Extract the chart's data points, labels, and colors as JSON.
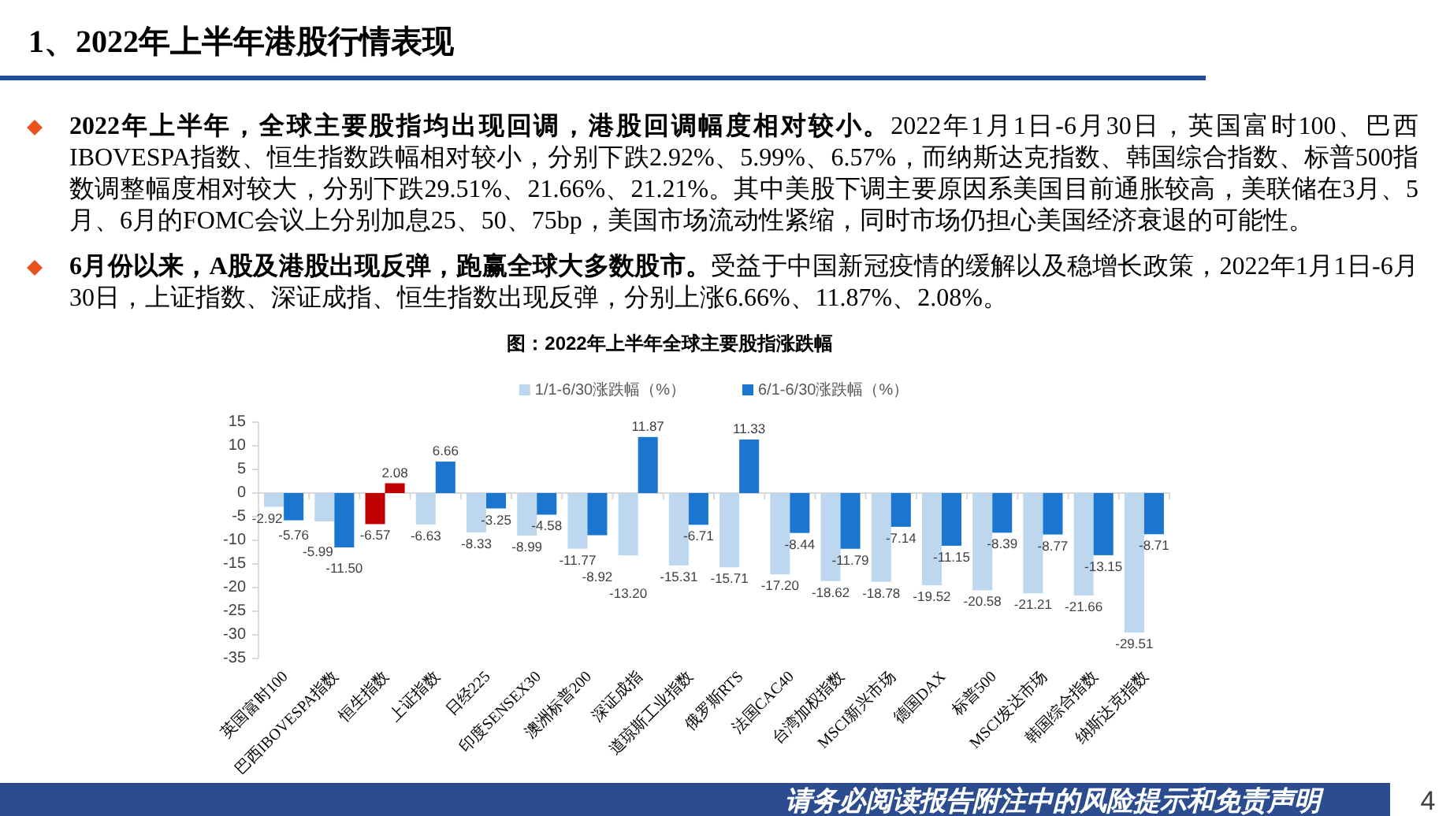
{
  "chart_data": {
    "type": "bar",
    "title": "图：2022年上半年全球主要股指涨跌幅",
    "categories": [
      "英国富时100",
      "巴西IBOVESPA指数",
      "恒生指数",
      "上证指数",
      "日经225",
      "印度SENSEX30",
      "澳洲标普200",
      "深证成指",
      "道琼斯工业指数",
      "俄罗斯RTS",
      "法国CAC40",
      "台湾加权指数",
      "MSCI新兴市场",
      "德国DAX",
      "标普500",
      "MSCI发达市场",
      "韩国综合指数",
      "纳斯达克指数"
    ],
    "series": [
      {
        "name": "1/1-6/30涨跌幅（%）",
        "color": "#bdd7ee",
        "colors": [
          "#bdd7ee",
          "#bdd7ee",
          "#c00000",
          "#bdd7ee",
          "#bdd7ee",
          "#bdd7ee",
          "#bdd7ee",
          "#bdd7ee",
          "#bdd7ee",
          "#bdd7ee",
          "#bdd7ee",
          "#bdd7ee",
          "#bdd7ee",
          "#bdd7ee",
          "#bdd7ee",
          "#bdd7ee",
          "#bdd7ee",
          "#bdd7ee"
        ],
        "values": [
          -2.92,
          -5.99,
          -6.57,
          -6.63,
          -8.33,
          -8.99,
          -11.77,
          -13.2,
          -15.31,
          -15.71,
          -17.2,
          -18.62,
          -18.78,
          -19.52,
          -20.58,
          -21.21,
          -21.66,
          -29.51
        ],
        "value_labels": [
          "-2.92",
          "-5.99",
          "-6.57",
          "-6.63",
          "-8.33",
          "-8.99",
          "-11.77",
          "-13.20",
          "-15.31",
          "-15.71",
          "-17.20",
          "-18.62",
          "-18.78",
          "-19.52",
          "-20.58",
          "-21.21",
          "-21.66",
          "-29.51"
        ]
      },
      {
        "name": "6/1-6/30涨跌幅（%）",
        "color": "#1b76d1",
        "colors": [
          "#1b76d1",
          "#1b76d1",
          "#c00000",
          "#1b76d1",
          "#1b76d1",
          "#1b76d1",
          "#1b76d1",
          "#1b76d1",
          "#1b76d1",
          "#1b76d1",
          "#1b76d1",
          "#1b76d1",
          "#1b76d1",
          "#1b76d1",
          "#1b76d1",
          "#1b76d1",
          "#1b76d1",
          "#1b76d1"
        ],
        "values": [
          -5.76,
          -11.5,
          2.08,
          6.66,
          -3.25,
          -4.58,
          -8.92,
          11.87,
          -6.71,
          11.33,
          -8.44,
          -11.79,
          -7.14,
          -11.15,
          -8.39,
          -8.77,
          -13.15,
          -8.71
        ],
        "value_labels": [
          "-5.76",
          "-11.50",
          "2.08",
          "6.66",
          "-3.25",
          "-4.58",
          "-8.92",
          "11.87",
          "-6.71",
          "11.33",
          "-8.44",
          "-11.79",
          "-7.14",
          "-11.15",
          "-8.39",
          "-8.77",
          "-13.15",
          "-8.71"
        ]
      }
    ],
    "ylim": [
      -35,
      15
    ],
    "yticks": [
      -35,
      -30,
      -25,
      -20,
      -15,
      -10,
      -5,
      0,
      5,
      10,
      15
    ],
    "legend": "top",
    "annotations": [
      "1、2022年上半年港股行情表现",
      "2022年上半年，全球主要股指均出现回调，港股回调幅度相对较小。2022年1月1日-6月30日，英国富时100、巴西IBOVESPA指数、恒生指数跌幅相对较小，分别下跌2.92%、5.99%、6.57%，而纳斯达克指数、韩国综合指数、标普500指数调整幅度相对较大，分别下跌29.51%、21.66%、21.21%。其中美股下调主要原因系美国目前通胀较高，美联储在3月、5月、6月的FOMC会议上分别加息25、50、75bp，美国市场流动性紧缩，同时市场仍担心美国经济衰退的可能性。",
      "6月份以来，A股及港股出现反弹，跑赢全球大多数股市。受益于中国新冠疫情的缓解以及稳增长政策，2022年1月1日-6月30日，上证指数、深证成指、恒生指数出现反弹，分别上涨6.66%、11.87%、2.08%。",
      "请务必阅读报告附注中的风险提示和免责声明",
      "4"
    ]
  }
}
